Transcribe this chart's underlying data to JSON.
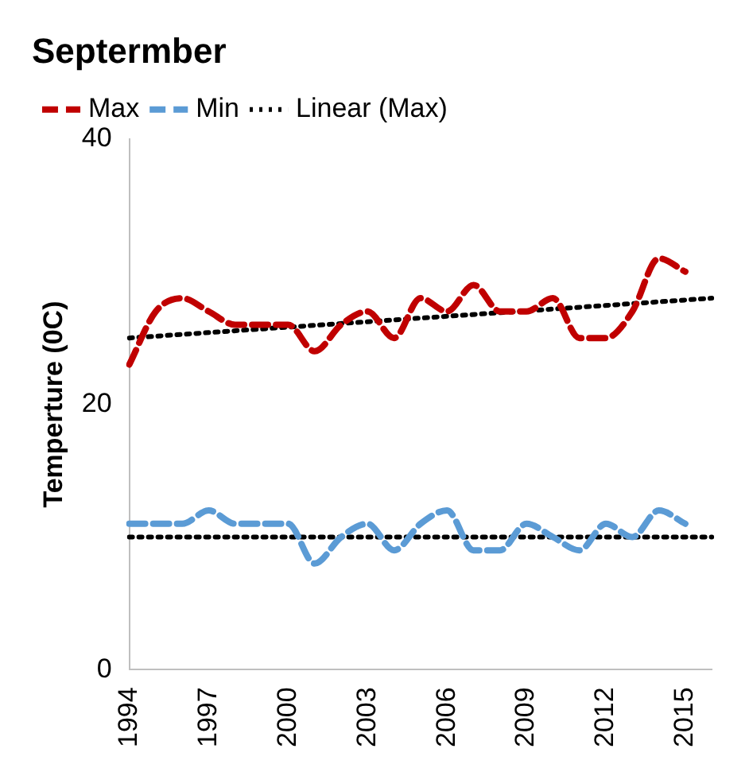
{
  "chart_data": {
    "type": "line",
    "title": "Septermber",
    "ylabel": "Temperture (0C)",
    "categories": [
      "1994",
      null,
      null,
      "1997",
      null,
      null,
      "2000",
      null,
      null,
      "2003",
      null,
      null,
      "2006",
      null,
      null,
      "2009",
      null,
      null,
      "2012",
      null,
      null,
      "2015",
      null
    ],
    "series": [
      {
        "name": "Max",
        "color": "#c00000",
        "line_style": "dashed",
        "values": [
          23,
          27,
          28,
          27,
          26,
          26,
          26,
          24,
          26,
          27,
          25,
          28,
          27,
          29,
          27,
          27,
          28,
          25,
          25,
          27,
          31,
          30,
          null
        ]
      },
      {
        "name": "Min",
        "color": "#5b9bd5",
        "line_style": "dashed",
        "values": [
          11,
          11,
          11,
          12,
          11,
          11,
          11,
          8,
          10,
          11,
          9,
          11,
          12,
          9,
          9,
          11,
          10,
          9,
          11,
          10,
          12,
          11,
          null
        ]
      },
      {
        "name": "Linear (Max)",
        "color": "#000000",
        "line_style": "dotted",
        "values": [
          25,
          null,
          null,
          null,
          null,
          null,
          null,
          null,
          null,
          null,
          null,
          null,
          null,
          null,
          null,
          null,
          null,
          null,
          null,
          null,
          null,
          null,
          28
        ]
      },
      {
        "color": "#000000",
        "line_style": "dotted",
        "values": [
          10,
          null,
          null,
          null,
          null,
          null,
          null,
          null,
          null,
          null,
          null,
          null,
          null,
          null,
          null,
          null,
          null,
          null,
          null,
          null,
          null,
          null,
          10
        ]
      }
    ],
    "ylim": [
      0,
      40
    ],
    "yticks": [
      0,
      20,
      40
    ],
    "grid": false,
    "legend": "top left",
    "marker": "none"
  }
}
